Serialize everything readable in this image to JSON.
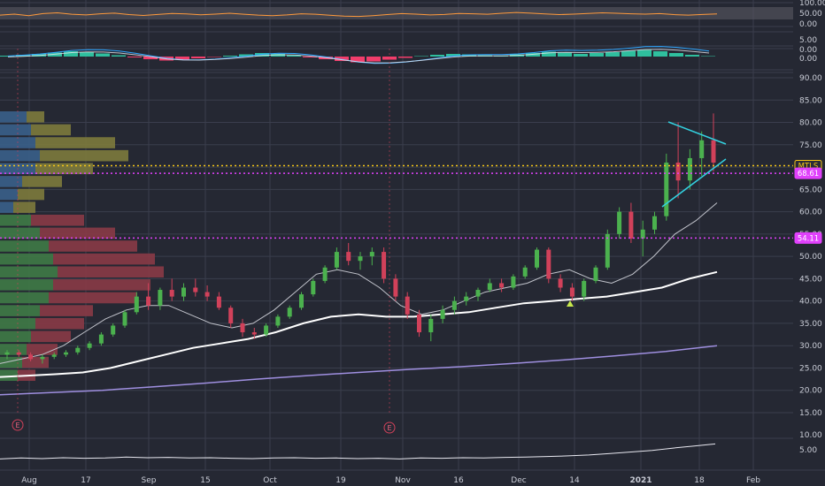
{
  "chart_data": [
    {
      "panel": "rsi",
      "type": "line",
      "ylim": [
        0,
        100
      ],
      "tick_labels": [
        "100.00",
        "50.00",
        "0.00"
      ],
      "values": [
        52,
        58,
        49,
        61,
        66,
        57,
        53,
        60,
        64,
        55,
        50,
        56,
        62,
        59,
        54,
        58,
        63,
        57,
        52,
        49,
        53,
        60,
        57,
        51,
        46,
        44,
        49,
        55,
        61,
        58,
        53,
        56,
        62,
        60,
        57,
        63,
        68,
        64,
        59,
        55,
        58,
        62,
        66,
        63,
        60,
        58,
        61,
        55,
        52,
        56,
        59
      ]
    },
    {
      "panel": "macd",
      "type": "bar",
      "tick_labels": [
        "5.00",
        "0.00",
        "0.00"
      ],
      "histogram": [
        0.2,
        0.4,
        0.6,
        0.9,
        1.2,
        1.0,
        0.7,
        0.3,
        -0.2,
        -0.6,
        -0.9,
        -0.7,
        -0.4,
        -0.1,
        0.2,
        0.5,
        0.8,
        0.6,
        0.3,
        -0.2,
        -0.6,
        -1.0,
        -1.3,
        -1.1,
        -0.7,
        -0.3,
        0.1,
        0.4,
        0.6,
        0.5,
        0.3,
        0.2,
        0.5,
        0.8,
        1.1,
        0.9,
        0.6,
        0.8,
        1.0,
        1.3,
        1.5,
        1.2,
        0.8,
        0.4,
        0.1
      ]
    },
    {
      "panel": "price",
      "type": "candlestick",
      "ylim": [
        17,
        92
      ],
      "ticks": [
        90,
        85,
        80,
        75,
        70,
        65,
        60,
        55,
        50,
        45,
        40,
        35,
        30,
        25,
        20,
        15
      ],
      "tick_labels": [
        "90.00",
        "85.00",
        "80.00",
        "75.00",
        "70.00",
        "65.00",
        "60.00",
        "55.00",
        "50.00",
        "45.00",
        "40.00",
        "35.00",
        "30.00",
        "25.00",
        "20.00",
        "15.00"
      ],
      "x_labels": [
        "Aug",
        "17",
        "Sep",
        "15",
        "Oct",
        "19",
        "Nov",
        "16",
        "Dec",
        "14",
        "2021",
        "18",
        "Feb"
      ],
      "candles": [
        [
          28,
          29,
          27,
          28.5
        ],
        [
          28.5,
          29,
          27.5,
          28
        ],
        [
          28,
          28.5,
          26.5,
          27
        ],
        [
          27,
          28,
          26,
          27.5
        ],
        [
          27.5,
          28.5,
          27,
          28
        ],
        [
          28,
          29,
          27.5,
          28.5
        ],
        [
          28.5,
          30,
          28,
          29.5
        ],
        [
          29.5,
          31,
          29,
          30.5
        ],
        [
          30.5,
          33,
          30,
          32.5
        ],
        [
          32.5,
          35,
          32,
          34.5
        ],
        [
          34.5,
          38,
          34,
          37.5
        ],
        [
          37.5,
          42,
          37,
          41
        ],
        [
          41,
          44,
          38,
          39
        ],
        [
          39,
          43,
          38,
          42.5
        ],
        [
          42.5,
          45,
          40,
          41
        ],
        [
          41,
          44,
          40,
          43
        ],
        [
          43,
          45,
          41,
          42
        ],
        [
          42,
          43.5,
          40,
          41
        ],
        [
          41,
          42,
          38,
          38.5
        ],
        [
          38.5,
          39,
          34,
          35
        ],
        [
          35,
          36,
          32,
          33
        ],
        [
          33,
          34,
          31.5,
          32.5
        ],
        [
          32.5,
          35,
          32,
          34.5
        ],
        [
          34.5,
          37,
          34,
          36.5
        ],
        [
          36.5,
          39,
          36,
          38.5
        ],
        [
          38.5,
          42,
          38,
          41.5
        ],
        [
          41.5,
          45,
          41,
          44.5
        ],
        [
          44.5,
          48,
          44,
          47.5
        ],
        [
          47.5,
          52,
          47,
          51
        ],
        [
          51,
          53,
          48,
          49
        ],
        [
          49,
          51,
          47,
          50
        ],
        [
          50,
          52,
          48,
          51
        ],
        [
          51,
          52,
          44,
          45
        ],
        [
          45,
          46,
          40,
          41
        ],
        [
          41,
          42,
          36,
          37
        ],
        [
          37,
          38,
          32,
          33
        ],
        [
          33,
          37,
          31,
          36
        ],
        [
          36,
          39,
          35,
          38
        ],
        [
          38,
          41,
          37,
          40
        ],
        [
          40,
          42,
          39,
          41
        ],
        [
          41,
          43,
          40,
          42.5
        ],
        [
          42.5,
          45,
          42,
          44
        ],
        [
          44,
          45,
          42,
          43
        ],
        [
          43,
          46,
          42.5,
          45.5
        ],
        [
          45.5,
          48,
          45,
          47.5
        ],
        [
          47.5,
          52,
          47,
          51.5
        ],
        [
          51.5,
          52,
          44,
          45
        ],
        [
          45,
          46,
          42,
          43
        ],
        [
          43,
          44,
          40,
          41
        ],
        [
          41,
          45,
          40,
          44.5
        ],
        [
          44.5,
          48,
          44,
          47.5
        ],
        [
          47.5,
          56,
          47,
          55
        ],
        [
          55,
          61,
          54,
          60
        ],
        [
          60,
          62,
          53,
          54
        ],
        [
          54,
          58,
          50,
          56
        ],
        [
          56,
          60,
          55,
          59
        ],
        [
          59,
          73,
          58,
          71
        ],
        [
          71,
          80,
          63,
          67
        ],
        [
          67,
          74,
          65,
          72
        ],
        [
          72,
          78,
          68,
          76
        ],
        [
          76,
          82,
          69,
          71
        ]
      ],
      "moving_averages": [
        {
          "type": "short",
          "color": "#c2c4cc",
          "values": [
            26,
            27,
            28,
            30,
            33,
            36,
            38,
            39,
            39,
            37,
            35,
            34,
            35,
            38,
            42,
            46,
            47,
            46,
            43,
            39,
            37,
            38,
            40,
            42,
            43,
            44,
            46,
            47,
            45,
            44,
            46,
            50,
            55,
            58,
            62
          ]
        },
        {
          "type": "medium",
          "color": "#ffffff",
          "values": [
            23,
            23.3,
            23.6,
            24,
            25,
            26.5,
            28,
            29.5,
            30.5,
            31.5,
            33,
            35,
            36.5,
            37,
            36.5,
            36.5,
            37,
            37.5,
            38.5,
            39.5,
            40,
            40.5,
            41,
            42,
            43,
            45,
            46.5
          ]
        },
        {
          "type": "long",
          "color": "#9f8fe0",
          "values": [
            19,
            19.5,
            20,
            20.8,
            21.6,
            22.5,
            23.3,
            24,
            24.7,
            25.3,
            26,
            26.8,
            27.7,
            28.7,
            30
          ]
        }
      ],
      "price_labels": [
        {
          "text": "MTLS",
          "value": 70.3,
          "color": "#f5c518"
        },
        {
          "text": "68.61",
          "value": 68.61,
          "color": "#e040fb"
        },
        {
          "text": "54.11",
          "value": 54.11,
          "color": "#e040fb"
        }
      ],
      "earnings_markers": [
        "E",
        "E"
      ],
      "triangle_color": "#33d1e0"
    },
    {
      "panel": "volume-indicator",
      "type": "line",
      "tick_labels": [
        "10.00",
        "5.00"
      ],
      "values": [
        3.2,
        3.5,
        3.3,
        3.6,
        3.4,
        3.5,
        3.8,
        3.6,
        3.7,
        3.5,
        3.6,
        3.4,
        3.3,
        3.5,
        3.6,
        3.4,
        3.5,
        3.3,
        3.4,
        3.2,
        3.5,
        3.4,
        3.6,
        3.5,
        3.7,
        3.8,
        4.0,
        4.2,
        4.5,
        5.0,
        5.5,
        6.0,
        6.8,
        7.5,
        8.2
      ]
    }
  ],
  "volume_profile": {
    "rows": [
      {
        "bull": 30,
        "bear": 20
      },
      {
        "bull": 35,
        "bear": 45
      },
      {
        "bull": 40,
        "bear": 90
      },
      {
        "bull": 45,
        "bear": 100
      },
      {
        "bull": 40,
        "bear": 65
      },
      {
        "bull": 25,
        "bear": 45
      },
      {
        "bull": 20,
        "bear": 30
      },
      {
        "bull": 15,
        "bear": 25
      },
      {
        "bull": 35,
        "bear": 60
      },
      {
        "bull": 45,
        "bear": 85
      },
      {
        "bull": 55,
        "bear": 100
      },
      {
        "bull": 60,
        "bear": 115
      },
      {
        "bull": 65,
        "bear": 120
      },
      {
        "bull": 60,
        "bear": 110
      },
      {
        "bull": 55,
        "bear": 100
      },
      {
        "bull": 45,
        "bear": 60
      },
      {
        "bull": 40,
        "bear": 55
      },
      {
        "bull": 35,
        "bear": 45
      },
      {
        "bull": 30,
        "bear": 35
      },
      {
        "bull": 25,
        "bear": 30
      },
      {
        "bull": 20,
        "bear": 20
      }
    ]
  },
  "colors": {
    "background": "#252833",
    "grid": "#3a3e4d",
    "up": "#4bb14e",
    "down": "#d1415a",
    "axis_text": "#c9ccd6",
    "rsi_line": "#ff9a3c",
    "macd_line": "#2ea6ff",
    "signal_line": "#e8e8f0",
    "macd_up": "#2fbf9e",
    "macd_down": "#f23d6b"
  }
}
